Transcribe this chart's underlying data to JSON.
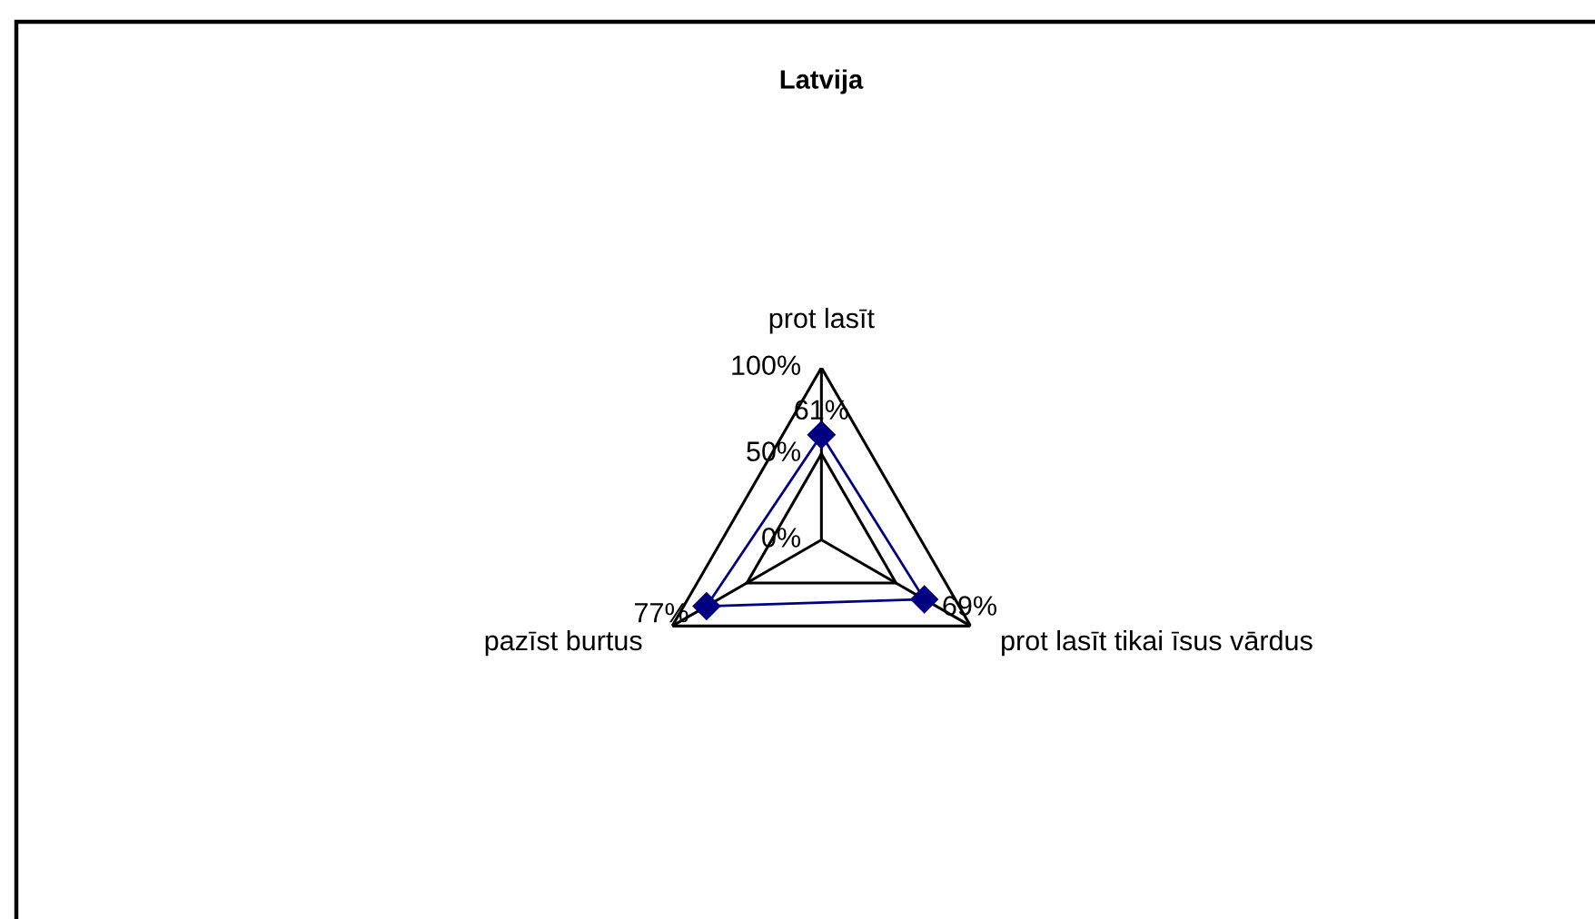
{
  "chart_data": {
    "type": "radar",
    "title": "Latvija",
    "categories": [
      "prot lasīt",
      "prot lasīt tikai īsus vārdus",
      "pazīst burtus"
    ],
    "series": [
      {
        "color": "#000080",
        "values": [
          61,
          69,
          77
        ],
        "value_labels": [
          "61%",
          "69%",
          "77%"
        ]
      }
    ],
    "ylim": [
      0,
      100
    ],
    "yticks": [
      {
        "value": 0,
        "label": "0%"
      },
      {
        "value": 50,
        "label": "50%"
      },
      {
        "value": 100,
        "label": "100%"
      }
    ],
    "grid": true,
    "marker": "diamond",
    "line_style": "solid"
  }
}
